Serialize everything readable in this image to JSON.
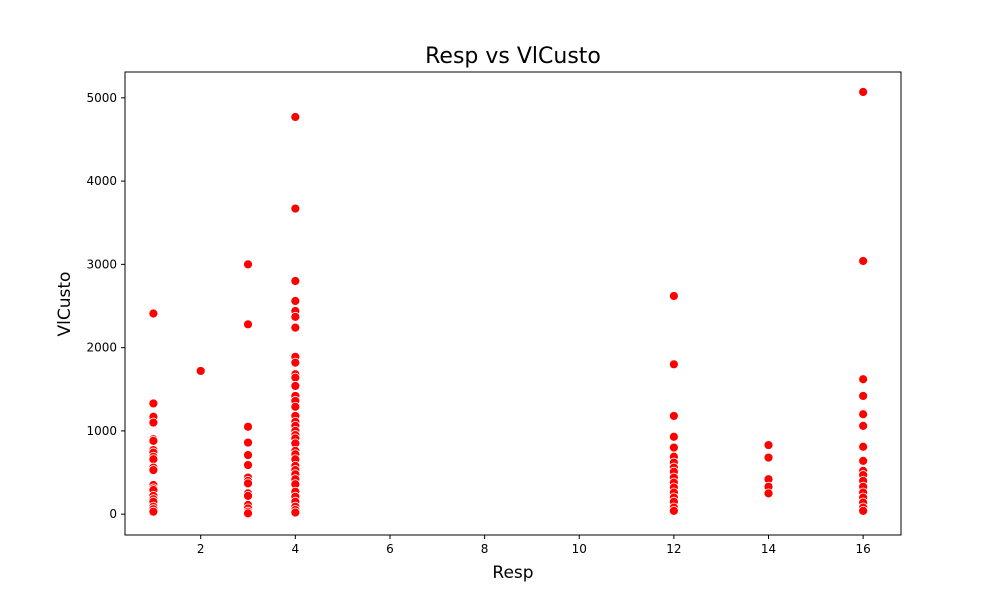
{
  "chart_data": {
    "type": "scatter",
    "title": "Resp vs VlCusto",
    "xlabel": "Resp",
    "ylabel": "VlCusto",
    "xlim": [
      0.4,
      16.8
    ],
    "ylim": [
      -250,
      5310
    ],
    "xticks": [
      2,
      4,
      6,
      8,
      10,
      12,
      14,
      16
    ],
    "yticks": [
      0,
      1000,
      2000,
      3000,
      4000,
      5000
    ],
    "grid": false,
    "legend": "none",
    "marker_color": "#ff0000",
    "marker_edge_color": "#ffffff",
    "points": [
      {
        "x": 1,
        "y": 2410
      },
      {
        "x": 1,
        "y": 1330
      },
      {
        "x": 1,
        "y": 1170
      },
      {
        "x": 1,
        "y": 1100
      },
      {
        "x": 1,
        "y": 900
      },
      {
        "x": 1,
        "y": 880
      },
      {
        "x": 1,
        "y": 770
      },
      {
        "x": 1,
        "y": 740
      },
      {
        "x": 1,
        "y": 690
      },
      {
        "x": 1,
        "y": 660
      },
      {
        "x": 1,
        "y": 560
      },
      {
        "x": 1,
        "y": 530
      },
      {
        "x": 1,
        "y": 350
      },
      {
        "x": 1,
        "y": 310
      },
      {
        "x": 1,
        "y": 290
      },
      {
        "x": 1,
        "y": 220
      },
      {
        "x": 1,
        "y": 180
      },
      {
        "x": 1,
        "y": 150
      },
      {
        "x": 1,
        "y": 90
      },
      {
        "x": 1,
        "y": 60
      },
      {
        "x": 1,
        "y": 30
      },
      {
        "x": 2,
        "y": 1720
      },
      {
        "x": 3,
        "y": 3000
      },
      {
        "x": 3,
        "y": 2280
      },
      {
        "x": 3,
        "y": 1050
      },
      {
        "x": 3,
        "y": 860
      },
      {
        "x": 3,
        "y": 710
      },
      {
        "x": 3,
        "y": 590
      },
      {
        "x": 3,
        "y": 440
      },
      {
        "x": 3,
        "y": 400
      },
      {
        "x": 3,
        "y": 370
      },
      {
        "x": 3,
        "y": 250
      },
      {
        "x": 3,
        "y": 220
      },
      {
        "x": 3,
        "y": 110
      },
      {
        "x": 3,
        "y": 70
      },
      {
        "x": 3,
        "y": 30
      },
      {
        "x": 3,
        "y": 10
      },
      {
        "x": 4,
        "y": 4770
      },
      {
        "x": 4,
        "y": 3670
      },
      {
        "x": 4,
        "y": 2800
      },
      {
        "x": 4,
        "y": 2560
      },
      {
        "x": 4,
        "y": 2440
      },
      {
        "x": 4,
        "y": 2370
      },
      {
        "x": 4,
        "y": 2240
      },
      {
        "x": 4,
        "y": 1890
      },
      {
        "x": 4,
        "y": 1820
      },
      {
        "x": 4,
        "y": 1680
      },
      {
        "x": 4,
        "y": 1640
      },
      {
        "x": 4,
        "y": 1540
      },
      {
        "x": 4,
        "y": 1420
      },
      {
        "x": 4,
        "y": 1360
      },
      {
        "x": 4,
        "y": 1290
      },
      {
        "x": 4,
        "y": 1180
      },
      {
        "x": 4,
        "y": 1110
      },
      {
        "x": 4,
        "y": 1060
      },
      {
        "x": 4,
        "y": 1000
      },
      {
        "x": 4,
        "y": 950
      },
      {
        "x": 4,
        "y": 910
      },
      {
        "x": 4,
        "y": 850
      },
      {
        "x": 4,
        "y": 760
      },
      {
        "x": 4,
        "y": 720
      },
      {
        "x": 4,
        "y": 660
      },
      {
        "x": 4,
        "y": 580
      },
      {
        "x": 4,
        "y": 530
      },
      {
        "x": 4,
        "y": 480
      },
      {
        "x": 4,
        "y": 420
      },
      {
        "x": 4,
        "y": 360
      },
      {
        "x": 4,
        "y": 270
      },
      {
        "x": 4,
        "y": 210
      },
      {
        "x": 4,
        "y": 150
      },
      {
        "x": 4,
        "y": 90
      },
      {
        "x": 4,
        "y": 50
      },
      {
        "x": 4,
        "y": 20
      },
      {
        "x": 12,
        "y": 2620
      },
      {
        "x": 12,
        "y": 1800
      },
      {
        "x": 12,
        "y": 1180
      },
      {
        "x": 12,
        "y": 930
      },
      {
        "x": 12,
        "y": 800
      },
      {
        "x": 12,
        "y": 690
      },
      {
        "x": 12,
        "y": 620
      },
      {
        "x": 12,
        "y": 560
      },
      {
        "x": 12,
        "y": 510
      },
      {
        "x": 12,
        "y": 440
      },
      {
        "x": 12,
        "y": 380
      },
      {
        "x": 12,
        "y": 320
      },
      {
        "x": 12,
        "y": 260
      },
      {
        "x": 12,
        "y": 200
      },
      {
        "x": 12,
        "y": 150
      },
      {
        "x": 12,
        "y": 80
      },
      {
        "x": 12,
        "y": 40
      },
      {
        "x": 14,
        "y": 830
      },
      {
        "x": 14,
        "y": 680
      },
      {
        "x": 14,
        "y": 420
      },
      {
        "x": 14,
        "y": 330
      },
      {
        "x": 14,
        "y": 250
      },
      {
        "x": 16,
        "y": 5070
      },
      {
        "x": 16,
        "y": 3040
      },
      {
        "x": 16,
        "y": 1620
      },
      {
        "x": 16,
        "y": 1420
      },
      {
        "x": 16,
        "y": 1200
      },
      {
        "x": 16,
        "y": 1060
      },
      {
        "x": 16,
        "y": 810
      },
      {
        "x": 16,
        "y": 640
      },
      {
        "x": 16,
        "y": 520
      },
      {
        "x": 16,
        "y": 470
      },
      {
        "x": 16,
        "y": 400
      },
      {
        "x": 16,
        "y": 330
      },
      {
        "x": 16,
        "y": 260
      },
      {
        "x": 16,
        "y": 200
      },
      {
        "x": 16,
        "y": 140
      },
      {
        "x": 16,
        "y": 80
      },
      {
        "x": 16,
        "y": 40
      }
    ]
  }
}
